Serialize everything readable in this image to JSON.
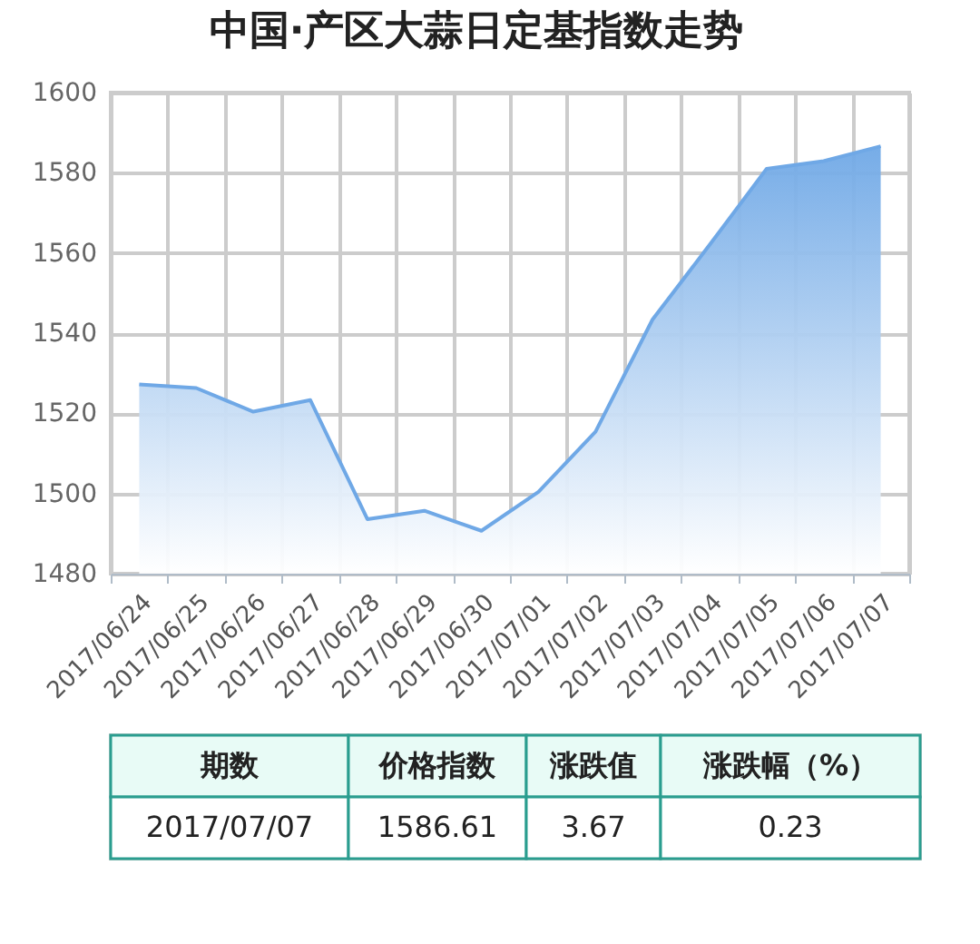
{
  "chart_data": {
    "type": "area",
    "title": "中国·产区大蒜日定基指数走势",
    "categories": [
      "2017/06/24",
      "2017/06/25",
      "2017/06/26",
      "2017/06/27",
      "2017/06/28",
      "2017/06/29",
      "2017/06/30",
      "2017/07/01",
      "2017/07/02",
      "2017/07/03",
      "2017/07/04",
      "2017/07/05",
      "2017/07/06",
      "2017/07/07"
    ],
    "series": [
      {
        "color": "#6fa8e6",
        "values": [
          1527.2,
          1526.3,
          1520.4,
          1523.3,
          1493.6,
          1495.7,
          1490.7,
          1500.4,
          1515.4,
          1543.4,
          1562.0,
          1581.0,
          1582.9,
          1586.6
        ]
      }
    ],
    "ylim": [
      1480,
      1600
    ],
    "yticks": [
      1480,
      1500,
      1520,
      1540,
      1560,
      1580,
      1600
    ],
    "grid": true,
    "annotations": [
      "期数",
      "价格指数",
      "涨跌值",
      "涨跌幅（%）",
      "2017/07/07",
      "1586.61",
      "3.67",
      "0.23"
    ]
  }
}
